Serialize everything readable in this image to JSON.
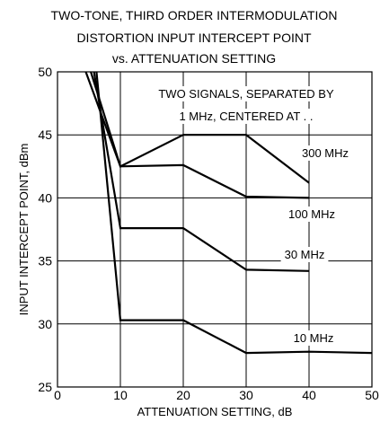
{
  "chart_data": {
    "type": "line",
    "title": [
      "TWO-TONE, THIRD ORDER INTERMODULATION",
      "DISTORTION INPUT INTERCEPT POINT",
      "vs. ATTENUATION SETTING"
    ],
    "xlabel": "ATTENUATION SETTING, dB",
    "ylabel": "INPUT INTERCEPT POINT, dBm",
    "xlim": [
      0,
      50
    ],
    "ylim": [
      25,
      50
    ],
    "xticks": [
      "0",
      "10",
      "20",
      "30",
      "40",
      "50"
    ],
    "yticks": [
      "25",
      "30",
      "35",
      "40",
      "45",
      "50"
    ],
    "grid": true,
    "annotation": [
      "TWO SIGNALS, SEPARATED BY",
      "1 MHz, CENTERED AT . ."
    ],
    "series": [
      {
        "name": "300 MHz",
        "points": [
          [
            4.5,
            50
          ],
          [
            10,
            42.5
          ],
          [
            20,
            45
          ],
          [
            30,
            45
          ],
          [
            40,
            41.2
          ]
        ]
      },
      {
        "name": "100 MHz",
        "points": [
          [
            5.3,
            50
          ],
          [
            10,
            42.5
          ],
          [
            20,
            42.6
          ],
          [
            30,
            40.1
          ],
          [
            40,
            40.0
          ]
        ]
      },
      {
        "name": "30 MHz",
        "points": [
          [
            5.8,
            50
          ],
          [
            10,
            37.6
          ],
          [
            20,
            37.6
          ],
          [
            30,
            34.3
          ],
          [
            40,
            34.2
          ]
        ]
      },
      {
        "name": "10 MHz",
        "points": [
          [
            6.2,
            50
          ],
          [
            10,
            30.3
          ],
          [
            20,
            30.3
          ],
          [
            30,
            27.7
          ],
          [
            40,
            27.8
          ],
          [
            50,
            27.7
          ]
        ]
      }
    ]
  }
}
